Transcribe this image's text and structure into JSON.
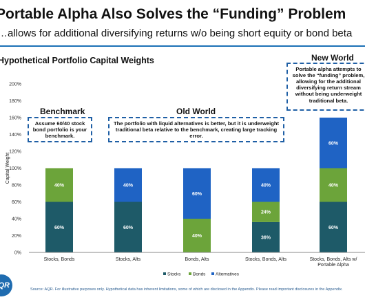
{
  "slide": {
    "title": "Portable Alpha Also Solves the “Funding” Problem",
    "subtitle": "…allows for additional diversifying returns w/o being short equity or bond beta",
    "chart_title": "Hypothetical Portfolio Capital Weights",
    "footer": "Source: AQR. For illustrative purposes only. Hypothetical data has inherent limitations, some of which are disclosed in the Appendix. Please read important disclosures in the Appendix.",
    "logo_text": "AQR"
  },
  "groups": {
    "benchmark": "Benchmark",
    "old_world": "Old World",
    "new_world": "New World"
  },
  "callouts": {
    "benchmark": "Assume 60/40 stock bond portfolio is your benchmark.",
    "old_world": "The portfolio with liquid alternatives is better, but it is underweight traditional beta relative to the benchmark, creating large tracking error.",
    "new_world": "Portable alpha attempts to solve the “funding” problem, allowing for the additional diversifying return stream without being underweight traditional beta."
  },
  "chart_data": {
    "type": "bar",
    "stacked": true,
    "title": "Hypothetical Portfolio Capital Weights",
    "xlabel": "",
    "ylabel": "Capital Weight",
    "ylim": [
      0,
      200
    ],
    "yticks": [
      "0%",
      "20%",
      "40%",
      "60%",
      "80%",
      "100%",
      "120%",
      "140%",
      "160%",
      "180%",
      "200%"
    ],
    "categories": [
      "Stocks, Bonds",
      "Stocks, Alts",
      "Bonds, Alts",
      "Stocks, Bonds, Alts",
      "Stocks, Bonds, Alts w/ Portable Alpha"
    ],
    "series": [
      {
        "name": "Stocks",
        "color": "#1e5a68",
        "values": [
          60,
          60,
          0,
          36,
          60
        ],
        "labels": [
          "60%",
          "60%",
          "",
          "36%",
          "60%"
        ]
      },
      {
        "name": "Bonds",
        "color": "#6ca43a",
        "values": [
          40,
          0,
          40,
          24,
          40
        ],
        "labels": [
          "40%",
          "",
          "40%",
          "24%",
          "40%"
        ]
      },
      {
        "name": "Alternatives",
        "color": "#1f63c4",
        "values": [
          0,
          40,
          60,
          40,
          60
        ],
        "labels": [
          "",
          "40%",
          "60%",
          "40%",
          "60%"
        ]
      }
    ],
    "grid": false,
    "legend": "bottom"
  }
}
